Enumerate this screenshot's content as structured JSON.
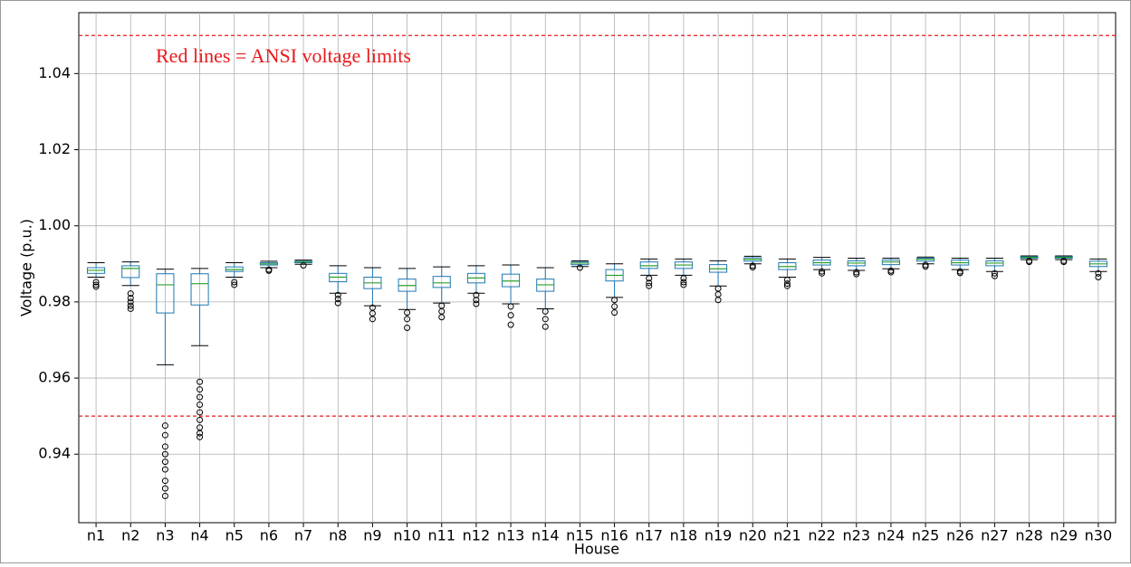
{
  "chart_data": {
    "type": "box",
    "annotation": "Red lines = ANSI voltage limits",
    "xlabel": "House",
    "ylabel": "Voltage (p.u.)",
    "categories": [
      "n1",
      "n2",
      "n3",
      "n4",
      "n5",
      "n6",
      "n7",
      "n8",
      "n9",
      "n10",
      "n11",
      "n12",
      "n13",
      "n14",
      "n15",
      "n16",
      "n17",
      "n18",
      "n19",
      "n20",
      "n21",
      "n22",
      "n23",
      "n24",
      "n25",
      "n26",
      "n27",
      "n28",
      "n29",
      "n30"
    ],
    "boxes": [
      {
        "whislo": 0.9865,
        "q1": 0.9875,
        "med": 0.9883,
        "q3": 0.989,
        "whishi": 0.9903,
        "fliers": [
          0.9852,
          0.9845,
          0.984
        ]
      },
      {
        "whislo": 0.9843,
        "q1": 0.9864,
        "med": 0.9888,
        "q3": 0.9895,
        "whishi": 0.9905,
        "fliers": [
          0.9822,
          0.981,
          0.98,
          0.979,
          0.9782
        ]
      },
      {
        "whislo": 0.9635,
        "q1": 0.9771,
        "med": 0.9845,
        "q3": 0.9874,
        "whishi": 0.9886,
        "fliers": [
          0.9475,
          0.945,
          0.942,
          0.94,
          0.938,
          0.936,
          0.933,
          0.931,
          0.929
        ]
      },
      {
        "whislo": 0.9685,
        "q1": 0.9792,
        "med": 0.9848,
        "q3": 0.9874,
        "whishi": 0.9888,
        "fliers": [
          0.959,
          0.957,
          0.955,
          0.953,
          0.951,
          0.949,
          0.947,
          0.9455,
          0.9445
        ]
      },
      {
        "whislo": 0.9865,
        "q1": 0.988,
        "med": 0.9885,
        "q3": 0.9892,
        "whishi": 0.9903,
        "fliers": [
          0.9852,
          0.9845
        ]
      },
      {
        "whislo": 0.989,
        "q1": 0.9897,
        "med": 0.99,
        "q3": 0.9903,
        "whishi": 0.9907,
        "fliers": [
          0.9885,
          0.9882
        ]
      },
      {
        "whislo": 0.9899,
        "q1": 0.9903,
        "med": 0.9905,
        "q3": 0.9907,
        "whishi": 0.991,
        "fliers": [
          0.9896
        ]
      },
      {
        "whislo": 0.9823,
        "q1": 0.9853,
        "med": 0.9865,
        "q3": 0.9875,
        "whishi": 0.9895,
        "fliers": [
          0.9818,
          0.9808,
          0.9797
        ]
      },
      {
        "whislo": 0.979,
        "q1": 0.9835,
        "med": 0.985,
        "q3": 0.9865,
        "whishi": 0.989,
        "fliers": [
          0.9785,
          0.977,
          0.9755
        ]
      },
      {
        "whislo": 0.978,
        "q1": 0.9828,
        "med": 0.9843,
        "q3": 0.986,
        "whishi": 0.9888,
        "fliers": [
          0.9772,
          0.9755,
          0.9732
        ]
      },
      {
        "whislo": 0.9797,
        "q1": 0.9838,
        "med": 0.985,
        "q3": 0.9867,
        "whishi": 0.9892,
        "fliers": [
          0.979,
          0.9775,
          0.976
        ]
      },
      {
        "whislo": 0.9823,
        "q1": 0.985,
        "med": 0.9863,
        "q3": 0.9875,
        "whishi": 0.9895,
        "fliers": [
          0.9818,
          0.9805,
          0.9795
        ]
      },
      {
        "whislo": 0.9795,
        "q1": 0.984,
        "med": 0.9855,
        "q3": 0.9873,
        "whishi": 0.9897,
        "fliers": [
          0.9788,
          0.9765,
          0.974
        ]
      },
      {
        "whislo": 0.9782,
        "q1": 0.9828,
        "med": 0.9845,
        "q3": 0.986,
        "whishi": 0.989,
        "fliers": [
          0.9775,
          0.9755,
          0.9735
        ]
      },
      {
        "whislo": 0.9893,
        "q1": 0.9898,
        "med": 0.9902,
        "q3": 0.9905,
        "whishi": 0.9908,
        "fliers": [
          0.989
        ]
      },
      {
        "whislo": 0.9812,
        "q1": 0.9855,
        "med": 0.987,
        "q3": 0.9885,
        "whishi": 0.99,
        "fliers": [
          0.9805,
          0.9788,
          0.9772
        ]
      },
      {
        "whislo": 0.987,
        "q1": 0.9888,
        "med": 0.9895,
        "q3": 0.9905,
        "whishi": 0.9913,
        "fliers": [
          0.9862,
          0.985,
          0.9842
        ]
      },
      {
        "whislo": 0.987,
        "q1": 0.9888,
        "med": 0.9897,
        "q3": 0.9905,
        "whishi": 0.9913,
        "fliers": [
          0.9862,
          0.9852,
          0.9845
        ]
      },
      {
        "whislo": 0.9842,
        "q1": 0.9878,
        "med": 0.9887,
        "q3": 0.9898,
        "whishi": 0.9908,
        "fliers": [
          0.9835,
          0.982,
          0.9805
        ]
      },
      {
        "whislo": 0.99,
        "q1": 0.9907,
        "med": 0.9912,
        "q3": 0.9916,
        "whishi": 0.992,
        "fliers": [
          0.9895,
          0.9891
        ]
      },
      {
        "whislo": 0.9865,
        "q1": 0.9885,
        "med": 0.9893,
        "q3": 0.9903,
        "whishi": 0.9913,
        "fliers": [
          0.9858,
          0.9848,
          0.9842
        ]
      },
      {
        "whislo": 0.9885,
        "q1": 0.9897,
        "med": 0.9903,
        "q3": 0.991,
        "whishi": 0.9917,
        "fliers": [
          0.988,
          0.9875
        ]
      },
      {
        "whislo": 0.9883,
        "q1": 0.9895,
        "med": 0.9902,
        "q3": 0.9908,
        "whishi": 0.9915,
        "fliers": [
          0.9878,
          0.9873
        ]
      },
      {
        "whislo": 0.9887,
        "q1": 0.9898,
        "med": 0.9905,
        "q3": 0.991,
        "whishi": 0.9915,
        "fliers": [
          0.9882,
          0.9878
        ]
      },
      {
        "whislo": 0.99,
        "q1": 0.9907,
        "med": 0.9912,
        "q3": 0.9915,
        "whishi": 0.9918,
        "fliers": [
          0.9897,
          0.9893
        ]
      },
      {
        "whislo": 0.9885,
        "q1": 0.9897,
        "med": 0.9903,
        "q3": 0.991,
        "whishi": 0.9915,
        "fliers": [
          0.988,
          0.9876
        ]
      },
      {
        "whislo": 0.988,
        "q1": 0.9895,
        "med": 0.9902,
        "q3": 0.9908,
        "whishi": 0.9915,
        "fliers": [
          0.9875,
          0.9868
        ]
      },
      {
        "whislo": 0.9911,
        "q1": 0.9915,
        "med": 0.9917,
        "q3": 0.9919,
        "whishi": 0.9921,
        "fliers": [
          0.9908,
          0.9905
        ]
      },
      {
        "whislo": 0.9911,
        "q1": 0.9915,
        "med": 0.9917,
        "q3": 0.9919,
        "whishi": 0.9921,
        "fliers": [
          0.9908,
          0.9905
        ]
      },
      {
        "whislo": 0.988,
        "q1": 0.9893,
        "med": 0.99,
        "q3": 0.9907,
        "whishi": 0.9913,
        "fliers": [
          0.9875,
          0.9865
        ]
      }
    ],
    "box_color": "#1f77b4",
    "median_color": "#2ca02c",
    "flier_color": "#000000",
    "reference_lines": [
      {
        "value": 1.05,
        "color": "#e8191c"
      },
      {
        "value": 0.95,
        "color": "#e8191c"
      }
    ],
    "annotation_color": "#e8191c",
    "ylim": [
      0.922,
      1.056
    ],
    "yticks": [
      0.94,
      0.96,
      0.98,
      {
        "value": 1,
        "label": "1.00"
      },
      1.02,
      1.04
    ],
    "grid": true
  }
}
